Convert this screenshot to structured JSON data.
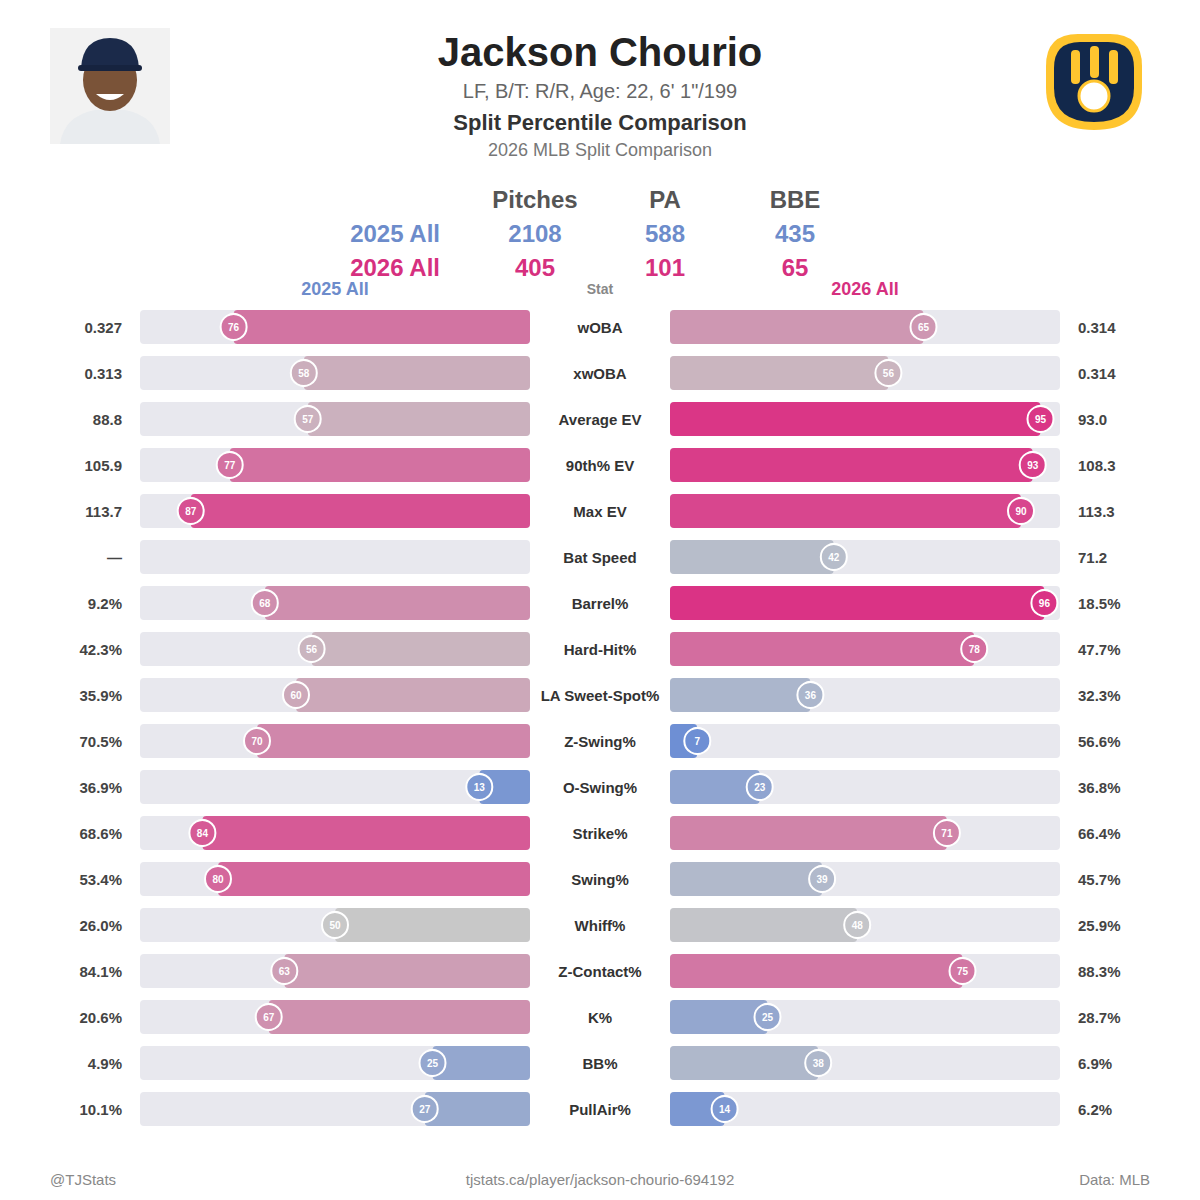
{
  "header": {
    "title": "Jackson Chourio",
    "subtitle": "LF, B/T: R/R, Age: 22, 6' 1\"/199",
    "heading": "Split Percentile Comparison",
    "subheading": "2026 MLB Split Comparison"
  },
  "summary": {
    "columns": [
      "Pitches",
      "PA",
      "BBE"
    ],
    "rows": [
      {
        "label": "2025 All",
        "color": "#6d8ccb",
        "values": [
          2108,
          588,
          435
        ]
      },
      {
        "label": "2026 All",
        "color": "#d6307f",
        "values": [
          405,
          101,
          65
        ]
      }
    ]
  },
  "chart_data": {
    "type": "bar",
    "orientation": "horizontal",
    "category_title": "Stat",
    "categories": [
      "wOBA",
      "xwOBA",
      "Average EV",
      "90th% EV",
      "Max EV",
      "Bat Speed",
      "Barrel%",
      "Hard-Hit%",
      "LA Sweet-Spot%",
      "Z-Swing%",
      "O-Swing%",
      "Strike%",
      "Swing%",
      "Whiff%",
      "Z-Contact%",
      "K%",
      "BB%",
      "PullAir%"
    ],
    "xlim": [
      0,
      100
    ],
    "tick_labels": false,
    "grid": false,
    "data_labels": true,
    "series": [
      {
        "name": "2025 All",
        "values": [
          76,
          58,
          57,
          77,
          87,
          null,
          68,
          56,
          60,
          70,
          13,
          84,
          80,
          50,
          63,
          67,
          25,
          27
        ],
        "stat_values": [
          "0.327",
          "0.313",
          "88.8",
          "105.9",
          "113.7",
          "—",
          "9.2%",
          "42.3%",
          "35.9%",
          "70.5%",
          "36.9%",
          "68.6%",
          "53.4%",
          "26.0%",
          "84.1%",
          "20.6%",
          "4.9%",
          "10.1%"
        ]
      },
      {
        "name": "2026 All",
        "values": [
          65,
          56,
          95,
          93,
          90,
          42,
          96,
          78,
          36,
          7,
          23,
          71,
          39,
          48,
          75,
          25,
          38,
          14
        ],
        "stat_values": [
          "0.314",
          "0.314",
          "93.0",
          "108.3",
          "113.3",
          "71.2",
          "18.5%",
          "47.7%",
          "32.3%",
          "56.6%",
          "36.8%",
          "66.4%",
          "45.7%",
          "25.9%",
          "88.3%",
          "28.7%",
          "6.9%",
          "6.2%"
        ]
      }
    ]
  },
  "footer": {
    "left": "@TJStats",
    "center": "tjstats.ca/player/jackson-chourio-694192",
    "right": "Data: MLB"
  }
}
